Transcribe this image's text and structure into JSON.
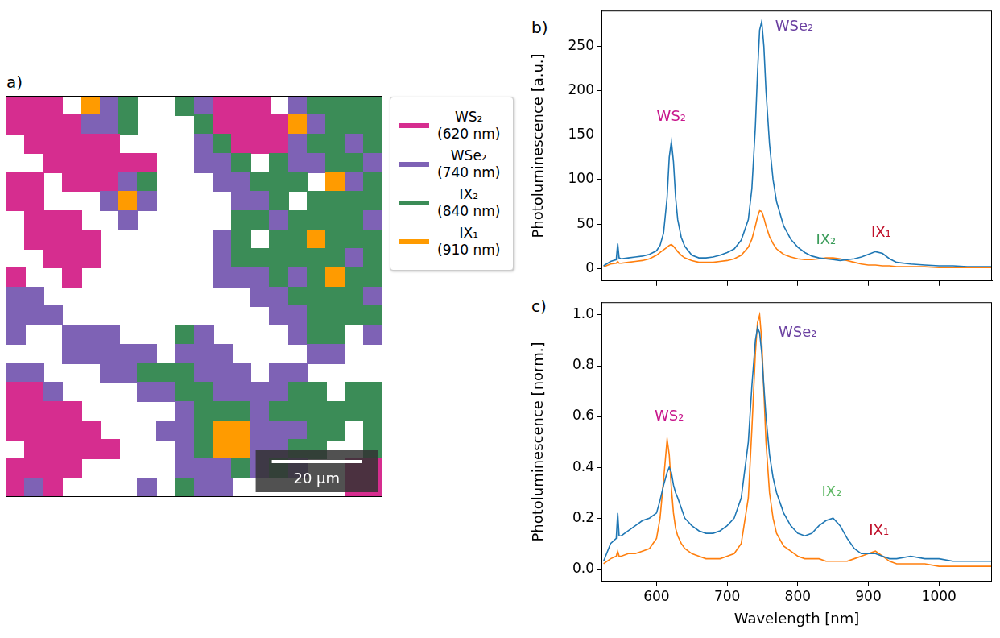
{
  "chart_data": [
    {
      "panel_label": "a)",
      "type": "heatmap",
      "xlim": [
        0,
        84
      ],
      "ylim": [
        0,
        89
      ],
      "tick_labels": false,
      "grid": false,
      "legend": "right",
      "series": [
        {
          "name": "WS₂ (620 nm)",
          "color": "#d62d8f"
        },
        {
          "name": "WSe₂ (740 nm)",
          "color": "#7e62b5"
        },
        {
          "name": "IX₂ (840 nm)",
          "color": "#3b8c57"
        },
        {
          "name": "IX₁ (910 nm)",
          "color": "#ff9b00"
        }
      ],
      "scale_bar": {
        "label": "20 µm",
        "length": 20
      },
      "cells": [
        [
          1,
          1,
          1,
          0,
          4,
          2,
          3,
          0,
          0,
          3,
          2,
          1,
          1,
          1,
          0,
          2,
          3,
          3,
          3,
          3
        ],
        [
          1,
          1,
          1,
          1,
          2,
          2,
          3,
          0,
          0,
          0,
          3,
          1,
          1,
          1,
          1,
          4,
          2,
          3,
          3,
          3
        ],
        [
          0,
          1,
          1,
          1,
          1,
          1,
          0,
          0,
          0,
          0,
          2,
          3,
          1,
          1,
          1,
          2,
          3,
          3,
          2,
          3
        ],
        [
          0,
          0,
          1,
          1,
          1,
          1,
          1,
          1,
          0,
          0,
          2,
          2,
          3,
          0,
          3,
          2,
          2,
          3,
          3,
          2
        ],
        [
          1,
          1,
          0,
          1,
          1,
          1,
          2,
          3,
          0,
          0,
          0,
          2,
          2,
          3,
          3,
          3,
          0,
          4,
          2,
          3
        ],
        [
          1,
          1,
          0,
          0,
          0,
          2,
          4,
          2,
          0,
          0,
          0,
          0,
          2,
          2,
          3,
          0,
          3,
          3,
          3,
          3
        ],
        [
          0,
          1,
          1,
          1,
          0,
          0,
          2,
          0,
          0,
          0,
          0,
          0,
          3,
          3,
          2,
          3,
          3,
          3,
          3,
          2
        ],
        [
          0,
          1,
          1,
          1,
          1,
          0,
          0,
          0,
          0,
          0,
          0,
          2,
          3,
          0,
          3,
          3,
          4,
          3,
          3,
          3
        ],
        [
          0,
          0,
          1,
          1,
          1,
          0,
          0,
          0,
          0,
          0,
          0,
          2,
          3,
          3,
          3,
          3,
          3,
          3,
          2,
          3
        ],
        [
          1,
          0,
          0,
          1,
          0,
          0,
          0,
          0,
          0,
          0,
          0,
          2,
          2,
          2,
          3,
          2,
          3,
          4,
          3,
          3
        ],
        [
          2,
          2,
          0,
          0,
          0,
          0,
          0,
          0,
          0,
          0,
          0,
          0,
          0,
          2,
          2,
          3,
          3,
          3,
          3,
          2
        ],
        [
          2,
          2,
          2,
          0,
          0,
          0,
          0,
          0,
          0,
          0,
          0,
          0,
          0,
          0,
          2,
          2,
          3,
          3,
          3,
          3
        ],
        [
          2,
          0,
          0,
          2,
          2,
          2,
          0,
          0,
          0,
          3,
          2,
          0,
          0,
          0,
          0,
          2,
          3,
          3,
          0,
          2
        ],
        [
          0,
          0,
          0,
          2,
          2,
          2,
          2,
          2,
          0,
          2,
          2,
          2,
          0,
          0,
          0,
          0,
          2,
          2,
          0,
          0
        ],
        [
          2,
          2,
          0,
          0,
          0,
          2,
          2,
          3,
          3,
          3,
          2,
          2,
          2,
          0,
          2,
          2,
          0,
          0,
          0,
          0
        ],
        [
          1,
          1,
          2,
          0,
          0,
          0,
          0,
          2,
          2,
          3,
          3,
          2,
          2,
          2,
          2,
          3,
          3,
          0,
          3,
          3
        ],
        [
          1,
          1,
          1,
          1,
          0,
          0,
          0,
          0,
          0,
          2,
          3,
          3,
          3,
          2,
          3,
          3,
          3,
          3,
          3,
          3
        ],
        [
          1,
          1,
          1,
          1,
          1,
          0,
          0,
          0,
          2,
          2,
          3,
          4,
          4,
          2,
          2,
          2,
          3,
          3,
          0,
          3
        ],
        [
          0,
          1,
          1,
          1,
          1,
          1,
          0,
          0,
          0,
          2,
          3,
          4,
          4,
          2,
          2,
          3,
          3,
          0,
          0,
          3
        ],
        [
          1,
          1,
          1,
          1,
          0,
          0,
          0,
          0,
          0,
          2,
          2,
          2,
          3,
          2,
          3,
          2,
          0,
          0,
          1,
          1
        ],
        [
          1,
          2,
          1,
          0,
          0,
          0,
          0,
          2,
          0,
          3,
          2,
          2,
          0,
          0,
          0,
          0,
          0,
          0,
          1,
          1
        ]
      ]
    },
    {
      "panel_label": "b)",
      "type": "line",
      "y_label": "Photoluminescence [a.u.]",
      "tick_labels": "y",
      "grid": false,
      "xlim": [
        522,
        1075
      ],
      "xticks": [
        600,
        700,
        800,
        900,
        1000
      ],
      "ylim": [
        -14,
        290
      ],
      "yticks": [
        0,
        50,
        100,
        150,
        200,
        250
      ],
      "x": [
        525,
        535,
        543,
        545,
        547,
        550,
        560,
        570,
        580,
        590,
        600,
        605,
        610,
        615,
        618,
        621,
        624,
        627,
        630,
        635,
        640,
        650,
        660,
        670,
        680,
        690,
        700,
        710,
        720,
        730,
        735,
        740,
        743,
        746,
        749,
        752,
        755,
        760,
        765,
        770,
        780,
        790,
        800,
        810,
        820,
        830,
        840,
        850,
        860,
        870,
        880,
        890,
        900,
        910,
        920,
        930,
        940,
        960,
        980,
        1000,
        1020,
        1040,
        1060,
        1075
      ],
      "series": [
        {
          "color": "#1f77b4",
          "values": [
            3,
            8,
            10,
            28,
            12,
            11,
            12,
            13,
            14,
            16,
            20,
            26,
            40,
            80,
            125,
            143,
            120,
            80,
            55,
            35,
            25,
            15,
            12,
            12,
            13,
            15,
            18,
            22,
            32,
            55,
            90,
            160,
            220,
            268,
            278,
            250,
            200,
            140,
            100,
            75,
            48,
            33,
            24,
            18,
            14,
            12,
            11,
            10,
            9,
            10,
            11,
            13,
            16,
            19,
            17,
            11,
            7,
            5,
            4,
            3,
            3,
            2,
            2,
            2
          ]
        },
        {
          "color": "#ff7f0e",
          "values": [
            2,
            5,
            6,
            8,
            6,
            6,
            7,
            8,
            9,
            11,
            15,
            18,
            21,
            24,
            26,
            27,
            25,
            22,
            19,
            15,
            12,
            9,
            7,
            7,
            7,
            8,
            9,
            11,
            15,
            24,
            33,
            48,
            58,
            65,
            64,
            57,
            48,
            36,
            28,
            22,
            16,
            13,
            11,
            10,
            10,
            11,
            12,
            12,
            11,
            9,
            7,
            5,
            4,
            4,
            3,
            3,
            2,
            2,
            2,
            1,
            1,
            1,
            1,
            1
          ]
        }
      ],
      "annotations": [
        {
          "text": "WS₂",
          "x": 621,
          "y": 170,
          "color": "#c8178c"
        },
        {
          "text": "WSe₂",
          "x": 795,
          "y": 272,
          "color": "#6a3fa0"
        },
        {
          "text": "IX₂",
          "x": 840,
          "y": 32,
          "color": "#3b9c5a"
        },
        {
          "text": "IX₁",
          "x": 918,
          "y": 40,
          "color": "#c0102a"
        }
      ]
    },
    {
      "panel_label": "c)",
      "type": "line",
      "x_label": "Wavelength [nm]",
      "y_label": "Photoluminescence [norm.]",
      "tick_labels": true,
      "grid": false,
      "xlim": [
        522,
        1075
      ],
      "xticks": [
        600,
        700,
        800,
        900,
        1000
      ],
      "ylim": [
        -0.05,
        1.05
      ],
      "yticks": [
        {
          "value": 0,
          "label": "0.0"
        },
        {
          "value": 0.2,
          "label": "0.2"
        },
        {
          "value": 0.4,
          "label": "0.4"
        },
        {
          "value": 0.6,
          "label": "0.6"
        },
        {
          "value": 0.8,
          "label": "0.8"
        },
        {
          "value": 1.0,
          "label": "1.0"
        }
      ],
      "x": [
        525,
        535,
        543,
        545,
        547,
        550,
        560,
        570,
        580,
        590,
        600,
        605,
        610,
        615,
        618,
        621,
        624,
        627,
        630,
        635,
        640,
        650,
        660,
        670,
        680,
        690,
        700,
        710,
        720,
        730,
        735,
        740,
        743,
        746,
        749,
        752,
        755,
        760,
        765,
        770,
        780,
        790,
        800,
        810,
        820,
        830,
        840,
        850,
        860,
        870,
        880,
        890,
        900,
        910,
        920,
        930,
        940,
        960,
        980,
        1000,
        1020,
        1040,
        1060,
        1075
      ],
      "series": [
        {
          "color": "#1f77b4",
          "values": [
            0.03,
            0.1,
            0.12,
            0.22,
            0.13,
            0.13,
            0.15,
            0.17,
            0.19,
            0.2,
            0.22,
            0.27,
            0.33,
            0.38,
            0.4,
            0.38,
            0.33,
            0.3,
            0.28,
            0.24,
            0.2,
            0.17,
            0.15,
            0.14,
            0.14,
            0.15,
            0.17,
            0.2,
            0.28,
            0.5,
            0.72,
            0.9,
            0.95,
            0.93,
            0.85,
            0.72,
            0.6,
            0.45,
            0.36,
            0.3,
            0.22,
            0.17,
            0.14,
            0.13,
            0.14,
            0.17,
            0.19,
            0.2,
            0.17,
            0.12,
            0.08,
            0.06,
            0.06,
            0.06,
            0.05,
            0.04,
            0.04,
            0.05,
            0.04,
            0.04,
            0.03,
            0.03,
            0.03,
            0.03
          ]
        },
        {
          "color": "#ff7f0e",
          "values": [
            0.02,
            0.04,
            0.05,
            0.07,
            0.05,
            0.05,
            0.06,
            0.06,
            0.07,
            0.08,
            0.12,
            0.2,
            0.35,
            0.51,
            0.45,
            0.32,
            0.22,
            0.16,
            0.13,
            0.1,
            0.08,
            0.06,
            0.05,
            0.04,
            0.04,
            0.04,
            0.05,
            0.06,
            0.1,
            0.28,
            0.55,
            0.85,
            0.97,
            1.0,
            0.9,
            0.7,
            0.5,
            0.3,
            0.2,
            0.14,
            0.09,
            0.07,
            0.05,
            0.04,
            0.04,
            0.04,
            0.03,
            0.03,
            0.03,
            0.03,
            0.04,
            0.05,
            0.06,
            0.07,
            0.05,
            0.03,
            0.02,
            0.02,
            0.02,
            0.01,
            0.01,
            0.01,
            0.01,
            0.01
          ]
        }
      ],
      "annotations": [
        {
          "text": "WS₂",
          "x": 618,
          "y": 0.6,
          "color": "#c8178c"
        },
        {
          "text": "WSe₂",
          "x": 800,
          "y": 0.93,
          "color": "#6a3fa0"
        },
        {
          "text": "IX₂",
          "x": 848,
          "y": 0.3,
          "color": "#5fb865"
        },
        {
          "text": "IX₁",
          "x": 915,
          "y": 0.15,
          "color": "#c0102a"
        }
      ]
    }
  ]
}
